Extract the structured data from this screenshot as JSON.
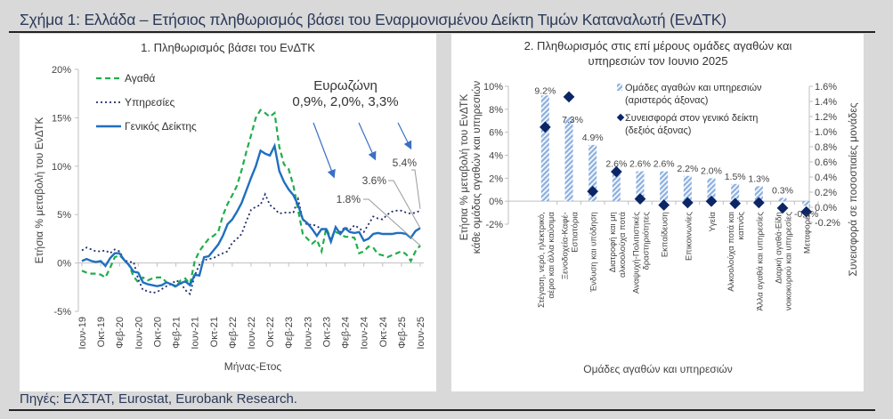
{
  "figure": {
    "title": "Σχήμα 1: Ελλάδα – Ετήσιος πληθωρισμός βάσει του Εναρμονισμένου Δείκτη Τιμών Καταναλωτή (ΕνΔΤΚ)",
    "source": "Πηγές: ΕΛΣΤΑΤ, Eurostat, Eurobank Research."
  },
  "colors": {
    "goods": "#1fae4a",
    "services": "#1f2d6b",
    "headline": "#1f6fbf",
    "arrow": "#3a6fc4",
    "bars": "#8fb2e0",
    "diamonds": "#0b2566",
    "background": "#d9d9d9",
    "panel": "#ffffff",
    "title_text": "#2b3a5a"
  },
  "chart_data": [
    {
      "type": "line",
      "title": "1. Πληθωρισμός βάσει του ΕνΔΤΚ",
      "xlabel": "Μήνας-Ετος",
      "ylabel": "Ετήσια % μεταβολή του ΕνΔΤΚ",
      "ylim": [
        -5,
        20
      ],
      "yticks": [
        "20%",
        "15%",
        "10%",
        "5%",
        "0%",
        "-5%"
      ],
      "x_tick_labels": [
        "Ιουν-19",
        "Οκτ-19",
        "Φεβ-20",
        "Ιουν-20",
        "Οκτ-20",
        "Φεβ-21",
        "Ιουν-21",
        "Οκτ-21",
        "Φεβ-22",
        "Ιουν-22",
        "Οκτ-22",
        "Φεβ-23",
        "Ιουν-23",
        "Οκτ-23",
        "Φεβ-24",
        "Ιουν-24",
        "Οκτ-24",
        "Φεβ-25",
        "Ιουν-25"
      ],
      "legend": [
        "Αγαθά",
        "Υπηρεσίες",
        "Γενικός Δείκτης"
      ],
      "legend_position": "upper-left",
      "grid": false,
      "annotations": {
        "eurozone_title": "Ευρωζώνη",
        "eurozone_values": "0,9%, 2,0%, 3,3%",
        "label_goods_last": "1.8%",
        "label_headline_last": "3.6%",
        "label_services_last": "5.4%"
      },
      "x_start": "Ιουν-19",
      "x_end": "Ιουν-25",
      "series": [
        {
          "name": "Αγαθά",
          "style": "dashed",
          "values": [
            -0.8,
            -1.0,
            -1.1,
            -1.1,
            -1.2,
            -1.5,
            -0.5,
            0.6,
            0.8,
            0.3,
            -0.2,
            -1.4,
            -2.0,
            -1.5,
            -1.8,
            -1.6,
            -1.5,
            -1.5,
            -2.0,
            -2.2,
            -2.5,
            -1.8,
            -1.6,
            -2.2,
            0.2,
            1.2,
            1.9,
            2.5,
            2.8,
            3.2,
            4.9,
            6.1,
            7.0,
            8.0,
            9.6,
            11.5,
            13.2,
            15.0,
            15.8,
            15.5,
            15.1,
            15.5,
            12.0,
            10.2,
            9.7,
            8.0,
            5.5,
            3.0,
            2.5,
            2.0,
            2.4,
            1.2,
            3.6,
            2.5,
            3.2,
            3.0,
            2.7,
            2.7,
            2.6,
            1.0,
            1.2,
            1.7,
            1.6,
            0.9,
            0.8,
            0.6,
            0.8,
            1.0,
            1.2,
            0.9,
            0.2,
            1.2,
            1.8
          ]
        },
        {
          "name": "Υπηρεσίες",
          "style": "dotted",
          "values": [
            1.3,
            1.6,
            1.4,
            1.2,
            1.2,
            1.3,
            1.0,
            1.4,
            1.2,
            0.3,
            0.1,
            0.1,
            -1.7,
            -2.8,
            -2.9,
            -3.1,
            -3.0,
            -2.7,
            -2.4,
            -2.2,
            -1.8,
            -2.0,
            -2.8,
            -3.2,
            -1.3,
            -0.2,
            0.3,
            0.4,
            0.5,
            0.8,
            1.0,
            1.2,
            2.1,
            2.5,
            3.0,
            4.3,
            5.5,
            5.8,
            6.0,
            7.1,
            6.0,
            5.6,
            5.1,
            5.2,
            5.2,
            5.2,
            6.6,
            4.5,
            3.9,
            4.0,
            3.8,
            3.5,
            3.3,
            2.5,
            3.6,
            3.2,
            3.7,
            3.4,
            3.9,
            3.6,
            3.2,
            4.0,
            4.8,
            4.6,
            4.5,
            5.0,
            5.3,
            5.4,
            5.4,
            5.2,
            5.1,
            5.2,
            5.4
          ]
        },
        {
          "name": "Γενικός Δείκτης",
          "style": "solid",
          "values": [
            0.2,
            0.4,
            0.2,
            0.1,
            0.2,
            -0.3,
            0.5,
            1.0,
            1.0,
            0.3,
            -0.2,
            -0.9,
            -1.0,
            -2.0,
            -2.2,
            -2.3,
            -2.4,
            -2.3,
            -2.0,
            -2.2,
            -2.4,
            -2.1,
            -1.9,
            -2.3,
            -1.2,
            -1.3,
            0.6,
            0.7,
            1.3,
            1.9,
            2.8,
            4.0,
            4.5,
            5.3,
            6.2,
            7.5,
            8.8,
            10.0,
            11.6,
            11.3,
            11.1,
            12.1,
            9.5,
            8.4,
            7.6,
            7.0,
            6.0,
            4.5,
            4.1,
            3.5,
            2.8,
            3.5,
            3.5,
            2.2,
            3.7,
            3.0,
            3.6,
            3.2,
            3.1,
            3.2,
            2.3,
            2.5,
            3.0,
            3.1,
            3.0,
            3.0,
            3.0,
            3.1,
            3.1,
            3.0,
            2.6,
            3.3,
            3.6
          ]
        }
      ]
    },
    {
      "type": "bar",
      "title": "2. Πληθωρισμός στις επί μέρους ομάδες αγαθών και υπηρεσιών τον Ιουνιο 2025",
      "xlabel": "Ομάδες αγαθών και υπηρεσιών",
      "ylabel": "Ετήσια % μεταβολή του ΕνΔΤΚ κάθε ομάδας αγαθών και υπηρεσιών",
      "ylabel_right": "Συνεισφορά σε ποσοστιαίες μονάδες",
      "ylim": [
        -2,
        10
      ],
      "ylim_right": [
        -0.2,
        1.6
      ],
      "yticks": [
        "10%",
        "8%",
        "6%",
        "4%",
        "2%",
        "0%",
        "-2%"
      ],
      "yticks_right": [
        "1.6%",
        "1.4%",
        "1.2%",
        "1.0%",
        "0.8%",
        "0.6%",
        "0.4%",
        "0.2%",
        "0.0%",
        "-0.2%"
      ],
      "legend": [
        "Ομάδες αγαθών και υπηρεσιών (αριστερός άξονας)",
        "Συνεισφορά στον γενικό δείκτη (δεξιός άξονας)"
      ],
      "legend_position": "upper-right",
      "grid": false,
      "categories": [
        "Στέγαση, νερό, ηλεκτρικό, αέριο και άλλα καύσιμα",
        "Ξενοδοχεία-Καφέ-Εστιατόρια",
        "Ένδυση και υπόδηση",
        "Διατροφή και μη αλκοολούχα ποτά",
        "Αναψυχή-Πολιτιστικές δραστηριότητες",
        "Εκπαίδευση",
        "Επικοινωνίες",
        "Υγεία",
        "Αλκοολούχα ποτά και καπνός",
        "Άλλα αγαθά και υπηρεσίες",
        "Διαρκή αγαθά-Είδη νοικοκυριού και υπηρεσίες",
        "Μεταφορές"
      ],
      "bar_labels": [
        "9.2%",
        "7.3%",
        "4.9%",
        "2.6%",
        "2.6%",
        "2.6%",
        "2.2%",
        "2.0%",
        "1.5%",
        "1.3%",
        "0.3%",
        "-0.4%"
      ],
      "series": [
        {
          "name": "Ομάδες αγαθών και υπηρεσιών (αριστερός άξονας)",
          "type": "bar",
          "axis": "left",
          "values": [
            9.2,
            7.3,
            4.9,
            2.6,
            2.6,
            2.6,
            2.2,
            2.0,
            1.5,
            1.3,
            0.3,
            -0.4
          ]
        },
        {
          "name": "Συνεισφορά στον γενικό δείκτη (δεξιός άξονας)",
          "type": "scatter",
          "axis": "right",
          "values": [
            1.06,
            1.46,
            0.21,
            0.47,
            0.11,
            0.03,
            0.06,
            0.08,
            0.05,
            0.06,
            -0.01,
            -0.06
          ]
        }
      ]
    }
  ]
}
